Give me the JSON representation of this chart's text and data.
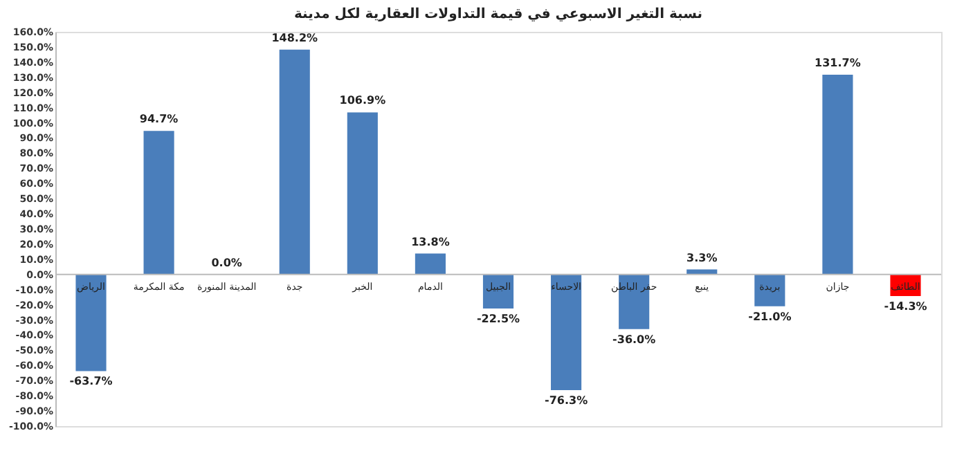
{
  "chart_data": {
    "type": "bar",
    "title": "نسبة التغير الاسبوعي في قيمة التداولات العقارية لكل مدينة",
    "categories": [
      "الرياض",
      "مكة المكرمة",
      "المدينة المنورة",
      "جدة",
      "الخبر",
      "الدمام",
      "الجبيل",
      "الاحساء",
      "حفر الباطن",
      "ينبع",
      "بريدة",
      "جازان",
      "الطائف"
    ],
    "values": [
      -63.7,
      94.7,
      0.0,
      148.2,
      106.9,
      13.8,
      -22.5,
      -76.3,
      -36.0,
      3.3,
      -21.0,
      131.7,
      -14.3
    ],
    "value_labels": [
      "-63.7%",
      "94.7%",
      "0.0%",
      "148.2%",
      "106.9%",
      "13.8%",
      "-22.5%",
      "-76.3%",
      "-36.0%",
      "3.3%",
      "-21.0%",
      "131.7%",
      "-14.3%"
    ],
    "colors": [
      "#4a7ebb",
      "#4a7ebb",
      "#4a7ebb",
      "#4a7ebb",
      "#4a7ebb",
      "#4a7ebb",
      "#4a7ebb",
      "#4a7ebb",
      "#4a7ebb",
      "#4a7ebb",
      "#4a7ebb",
      "#4a7ebb",
      "#ff0000"
    ],
    "ylim": [
      -100,
      160
    ],
    "yticks": [
      {
        "value": -100,
        "label": "-100.0%"
      },
      {
        "value": -90,
        "label": "-90.0%"
      },
      {
        "value": -80,
        "label": "-80.0%"
      },
      {
        "value": -70,
        "label": "-70.0%"
      },
      {
        "value": -60,
        "label": "-60.0%"
      },
      {
        "value": -50,
        "label": "-50.0%"
      },
      {
        "value": -40,
        "label": "-40.0%"
      },
      {
        "value": -30,
        "label": "-30.0%"
      },
      {
        "value": -20,
        "label": "-20.0%"
      },
      {
        "value": -10,
        "label": "-10.0%"
      },
      {
        "value": 0,
        "label": "0.0%"
      },
      {
        "value": 10,
        "label": "10.0%"
      },
      {
        "value": 20,
        "label": "20.0%"
      },
      {
        "value": 30,
        "label": "30.0%"
      },
      {
        "value": 40,
        "label": "40.0%"
      },
      {
        "value": 50,
        "label": "50.0%"
      },
      {
        "value": 60,
        "label": "60.0%"
      },
      {
        "value": 70,
        "label": "70.0%"
      },
      {
        "value": 80,
        "label": "80.0%"
      },
      {
        "value": 90,
        "label": "90.0%"
      },
      {
        "value": 100,
        "label": "100.0%"
      },
      {
        "value": 110,
        "label": "110.0%"
      },
      {
        "value": 120,
        "label": "120.0%"
      },
      {
        "value": 130,
        "label": "130.0%"
      },
      {
        "value": 140,
        "label": "140.0%"
      },
      {
        "value": 150,
        "label": "150.0%"
      },
      {
        "value": 160,
        "label": "160.0%"
      }
    ],
    "grid": false
  }
}
